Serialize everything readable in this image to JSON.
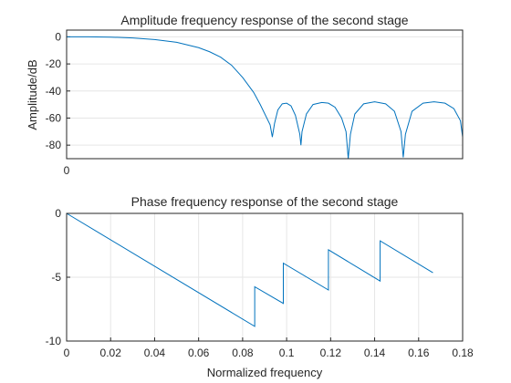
{
  "chart_data": [
    {
      "type": "line",
      "title": "Amplitude frequency response of the second stage",
      "xlabel": "",
      "ylabel": "Amplitude/dB",
      "xlim": [
        0,
        0.18
      ],
      "ylim": [
        -90,
        5
      ],
      "grid": true,
      "y_ticks": [
        "0",
        "-20",
        "-40",
        "-60",
        "-80"
      ],
      "y_tick_values": [
        0,
        -20,
        -40,
        -60,
        -80
      ],
      "x_ticks": [
        "0"
      ],
      "x_tick_values": [
        0
      ],
      "color": "#0072BD",
      "series": [
        {
          "x": [
            0,
            0.01,
            0.02,
            0.03,
            0.04,
            0.05,
            0.06,
            0.065,
            0.07,
            0.075,
            0.08,
            0.085,
            0.088,
            0.0925,
            0.0935,
            0.0945,
            0.096,
            0.098,
            0.1,
            0.102,
            0.104,
            0.106,
            0.1065,
            0.107,
            0.109,
            0.112,
            0.116,
            0.119,
            0.122,
            0.125,
            0.127,
            0.128,
            0.129,
            0.131,
            0.135,
            0.14,
            0.145,
            0.149,
            0.152,
            0.153,
            0.154,
            0.157,
            0.162,
            0.167,
            0.172,
            0.176,
            0.179,
            0.18
          ],
          "y": [
            0,
            0,
            -0.2,
            -0.8,
            -2,
            -4,
            -8,
            -11,
            -15,
            -21,
            -30,
            -41,
            -50,
            -65,
            -74,
            -64,
            -54,
            -49.5,
            -49,
            -51,
            -58,
            -72,
            -80,
            -70,
            -57,
            -50,
            -48.5,
            -49,
            -52,
            -60,
            -70,
            -90,
            -72,
            -57,
            -49.5,
            -48,
            -49.5,
            -55,
            -70,
            -89,
            -72,
            -55,
            -49,
            -48,
            -49,
            -53,
            -62,
            -74
          ]
        }
      ]
    },
    {
      "type": "line",
      "title": "Phase frequency response of the second stage",
      "xlabel": "Normalized frequency",
      "ylabel": "",
      "xlim": [
        0,
        0.18
      ],
      "ylim": [
        -10,
        0
      ],
      "grid": true,
      "y_ticks": [
        "0",
        "-5",
        "-10"
      ],
      "y_tick_values": [
        0,
        -5,
        -10
      ],
      "x_ticks": [
        "0",
        "0.02",
        "0.04",
        "0.06",
        "0.08",
        "0.1",
        "0.12",
        "0.14",
        "0.16",
        "0.18"
      ],
      "x_tick_values": [
        0,
        0.02,
        0.04,
        0.06,
        0.08,
        0.1,
        0.12,
        0.14,
        0.16,
        0.18
      ],
      "color": "#0072BD",
      "series": [
        {
          "x": [
            0,
            0.0855,
            0.0855,
            0.0985,
            0.0985,
            0.119,
            0.119,
            0.1425,
            0.1425,
            0.1665
          ],
          "y": [
            0,
            -8.85,
            -5.75,
            -7.05,
            -3.9,
            -6.0,
            -2.85,
            -5.3,
            -2.15,
            -4.65
          ]
        }
      ]
    }
  ]
}
